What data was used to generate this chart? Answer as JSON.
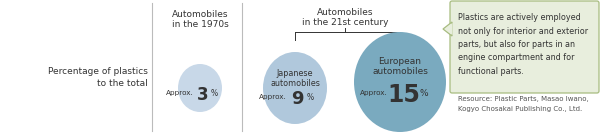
{
  "bg_color": "#ffffff",
  "left_label_line1": "Percentage of plastics",
  "left_label_line2": "to the total",
  "section1_title_line1": "Automobiles",
  "section1_title_line2": "in the 1970s",
  "section2_title_line1": "Automobiles",
  "section2_title_line2": "in the 21st century",
  "circle1_color": "#c8d8e8",
  "circle2_color": "#b0c8dc",
  "circle3_color": "#7aaabf",
  "circle1_approx": "Approx.",
  "circle1_value": "3",
  "circle1_unit": "%",
  "circle2_label_line1": "Japanese",
  "circle2_label_line2": "automobiles",
  "circle2_approx": "Approx.",
  "circle2_value": "9",
  "circle2_unit": "%",
  "circle3_label_line1": "European",
  "circle3_label_line2": "automobiles",
  "circle3_approx": "Approx.",
  "circle3_value": "15",
  "circle3_unit": "%",
  "callout_text_line1": "Plastics are actively employed",
  "callout_text_line2": "not only for interior and exterior",
  "callout_text_line3": "parts, but also for parts in an",
  "callout_text_line4": "engine compartment and for",
  "callout_text_line5": "functional parts.",
  "resource_line1": "Resource: Plastic Parts, Masao Iwano,",
  "resource_line2": "Kogyo Chosakai Publishing Co., Ltd.",
  "callout_bg": "#e8eedd",
  "callout_border": "#a8bc80",
  "divider_color": "#bbbbbb",
  "text_color": "#333333"
}
